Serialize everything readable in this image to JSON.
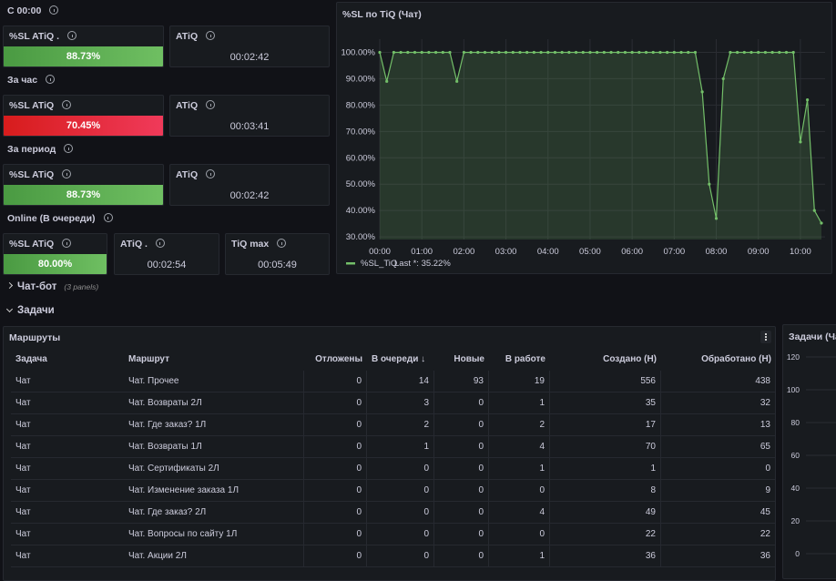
{
  "sections": [
    {
      "title": "С 00:00",
      "panels": [
        {
          "title": "%SL ATiQ .",
          "value": "88.73%",
          "status": "green"
        },
        {
          "title": "ATiQ",
          "value": "00:02:42"
        }
      ]
    },
    {
      "title": "За час",
      "panels": [
        {
          "title": "%SL ATiQ",
          "value": "70.45%",
          "status": "red"
        },
        {
          "title": "ATiQ",
          "value": "00:03:41"
        }
      ]
    },
    {
      "title": "За период",
      "panels": [
        {
          "title": "%SL ATiQ",
          "value": "88.73%",
          "status": "green"
        },
        {
          "title": "ATiQ",
          "value": "00:02:42"
        }
      ]
    },
    {
      "title": "Online (В очереди)",
      "panels": [
        {
          "title": "%SL ATiQ",
          "value": "80.00%",
          "status": "green"
        },
        {
          "title": "ATiQ .",
          "value": "00:02:54"
        },
        {
          "title": "TiQ max",
          "value": "00:05:49"
        }
      ]
    }
  ],
  "chart_data": {
    "type": "line",
    "title": "%SL по TiQ (Чат)",
    "x": [
      "00:00",
      "00:10",
      "00:20",
      "00:30",
      "00:40",
      "00:50",
      "01:00",
      "01:10",
      "01:20",
      "01:30",
      "01:40",
      "01:50",
      "02:00",
      "02:10",
      "02:20",
      "02:30",
      "02:40",
      "02:50",
      "03:00",
      "03:10",
      "03:20",
      "03:30",
      "03:40",
      "03:50",
      "04:00",
      "04:10",
      "04:20",
      "04:30",
      "04:40",
      "04:50",
      "05:00",
      "05:10",
      "05:20",
      "05:30",
      "05:40",
      "05:50",
      "06:00",
      "06:10",
      "06:20",
      "06:30",
      "06:40",
      "06:50",
      "07:00",
      "07:10",
      "07:20",
      "07:30",
      "07:40",
      "07:50",
      "08:00",
      "08:10",
      "08:20",
      "08:30",
      "08:40",
      "08:50",
      "09:00",
      "09:10",
      "09:20",
      "09:30",
      "09:40",
      "09:50",
      "10:00",
      "10:10",
      "10:20",
      "10:30"
    ],
    "series": [
      {
        "name": "%SL_TiQ",
        "color": "#73bf69",
        "legend_stat": "Last *: 35.22%",
        "values": [
          100,
          89,
          100,
          100,
          100,
          100,
          100,
          100,
          100,
          100,
          100,
          89,
          100,
          100,
          100,
          100,
          100,
          100,
          100,
          100,
          100,
          100,
          100,
          100,
          100,
          100,
          100,
          100,
          100,
          100,
          100,
          100,
          100,
          100,
          100,
          100,
          100,
          100,
          100,
          100,
          100,
          100,
          100,
          100,
          100,
          100,
          85,
          50,
          37,
          90,
          100,
          100,
          100,
          100,
          100,
          100,
          100,
          100,
          100,
          100,
          66,
          82,
          40,
          35.22
        ]
      }
    ],
    "ylim": [
      29,
      105
    ],
    "yticks": [
      {
        "value": 30,
        "label": "30.00%"
      },
      {
        "value": 40,
        "label": "40.00%"
      },
      {
        "value": 50,
        "label": "50.00%"
      },
      {
        "value": 60,
        "label": "60.00%"
      },
      {
        "value": 70,
        "label": "70.00%"
      },
      {
        "value": 80,
        "label": "80.00%"
      },
      {
        "value": 90,
        "label": "90.00%"
      },
      {
        "value": 100,
        "label": "100.00%"
      }
    ],
    "xticks": [
      "00:00",
      "01:00",
      "02:00",
      "03:00",
      "04:00",
      "05:00",
      "06:00",
      "07:00",
      "08:00",
      "09:00",
      "10:00"
    ],
    "grid": true
  },
  "rows": [
    {
      "title": "Чат-бот",
      "note": "(3 panels)"
    },
    {
      "title": "Задачи"
    }
  ],
  "table": {
    "title": "Маршруты",
    "columns": [
      "Задача",
      "Маршрут",
      "Отложены",
      "В очереди ↓",
      "Новые",
      "В работе",
      "Создано (Н)",
      "Обработано (Н)"
    ],
    "rows": [
      [
        "Чат",
        "Чат. Прочее",
        0,
        14,
        93,
        19,
        556,
        438
      ],
      [
        "Чат",
        "Чат. Возвраты 2Л",
        0,
        3,
        0,
        1,
        35,
        32
      ],
      [
        "Чат",
        "Чат. Где заказ? 1Л",
        0,
        2,
        0,
        2,
        17,
        13
      ],
      [
        "Чат",
        "Чат. Возвраты 1Л",
        0,
        1,
        0,
        4,
        70,
        65
      ],
      [
        "Чат",
        "Чат. Сертификаты 2Л",
        0,
        0,
        0,
        1,
        1,
        0
      ],
      [
        "Чат",
        "Чат. Изменение заказа 1Л",
        0,
        0,
        0,
        0,
        8,
        9
      ],
      [
        "Чат",
        "Чат. Где заказ? 2Л",
        0,
        0,
        0,
        4,
        49,
        45
      ],
      [
        "Чат",
        "Чат. Вопросы по сайту 1Л",
        0,
        0,
        0,
        0,
        22,
        22
      ],
      [
        "Чат",
        "Чат. Акции 2Л",
        0,
        0,
        0,
        1,
        36,
        36
      ]
    ]
  },
  "side_panel": {
    "title": "Задачи (Чат",
    "yticks": [
      0,
      20,
      40,
      60,
      80,
      100,
      120
    ]
  }
}
